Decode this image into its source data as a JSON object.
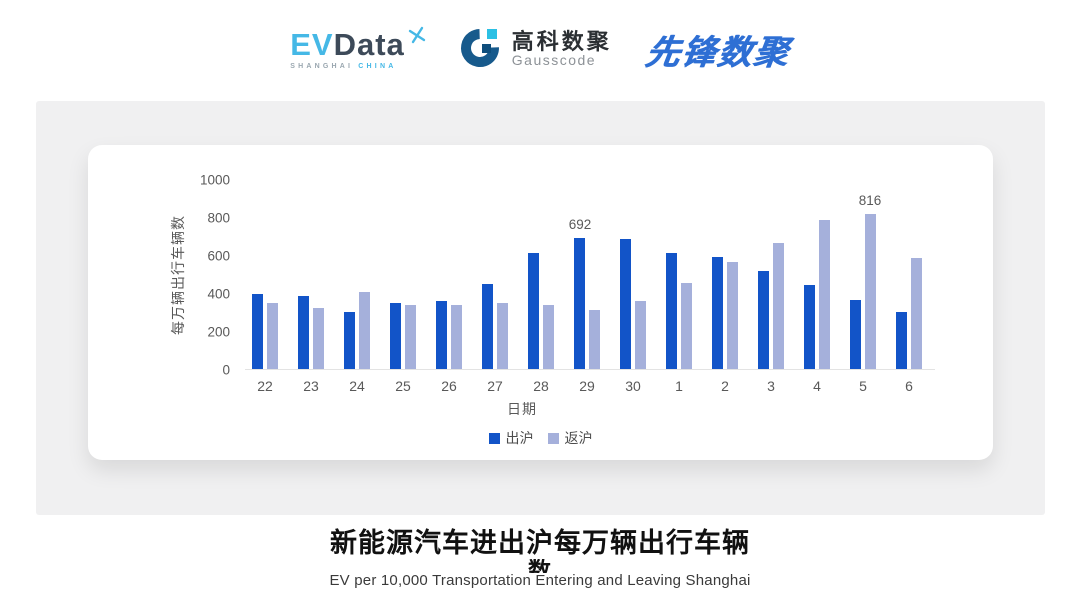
{
  "header": {
    "evdata_logo": {
      "ev": "EV",
      "data": "Data",
      "sub_left": "SHANGHAI",
      "sub_right": "CHINA"
    },
    "gausscode_logo": {
      "cn": "高科数聚",
      "en": "Gausscode"
    },
    "xianfeng_logo": {
      "text": "先锋数聚"
    }
  },
  "chart_data": {
    "type": "bar",
    "title": "",
    "categories": [
      "22",
      "23",
      "24",
      "25",
      "26",
      "27",
      "28",
      "29",
      "30",
      "1",
      "2",
      "3",
      "4",
      "5",
      "6"
    ],
    "series": [
      {
        "name": "出沪",
        "color": "#1254c8",
        "values": [
          395,
          386,
          298,
          347,
          360,
          448,
          608,
          692,
          682,
          612,
          589,
          517,
          442,
          361,
          301
        ]
      },
      {
        "name": "返沪",
        "color": "#a5b0db",
        "values": [
          345,
          322,
          403,
          338,
          337,
          345,
          338,
          312,
          356,
          454,
          565,
          663,
          784,
          816,
          584
        ]
      }
    ],
    "annotations": [
      {
        "series": 0,
        "index": 7,
        "text": "692"
      },
      {
        "series": 1,
        "index": 13,
        "text": "816"
      }
    ],
    "xlabel": "日期",
    "ylabel": "每万辆出行车辆数",
    "ylim": [
      0,
      1000
    ],
    "yticks": [
      0,
      200,
      400,
      600,
      800,
      1000
    ],
    "grid": false,
    "legend_position": "bottom"
  },
  "footer": {
    "title": "新能源汽车进出沪每万辆出行车辆数",
    "title_line1": "新能源汽车进出沪每万辆出行车辆",
    "title_line2": "数",
    "subtitle": "EV per 10,000 Transportation Entering and Leaving Shanghai"
  },
  "colors": {
    "panel_bg": "#f0f0f1",
    "card_bg": "#ffffff",
    "axis_text": "#595959",
    "series_out": "#1254c8",
    "series_return": "#a5b0db",
    "evdata_cyan": "#45b8e6",
    "evdata_dark": "#3d4a59",
    "xianfeng_blue": "#2e6fd4"
  }
}
